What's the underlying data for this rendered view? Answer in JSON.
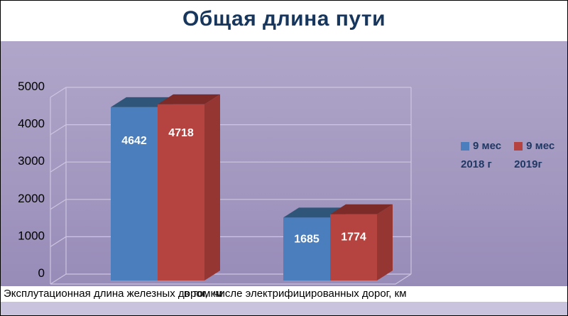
{
  "chart_data": {
    "type": "bar",
    "style": "3d-column",
    "title": "Общая длина пути",
    "categories": [
      "Эксплутационная длина железных дорог, км",
      "в том числе электрифицированных дорог, км"
    ],
    "series": [
      {
        "name": "9 мес 2018 г",
        "color": "#4a7ebc",
        "top_color": "#2f5678",
        "side_color": "#3c6ba0",
        "values": [
          4642,
          1685
        ]
      },
      {
        "name": "9 мес 2019г",
        "color": "#b5433f",
        "top_color": "#7c2b28",
        "side_color": "#963633",
        "values": [
          4718,
          1774
        ]
      }
    ],
    "ylim": [
      0,
      5000
    ],
    "yticks": [
      0,
      1000,
      2000,
      3000,
      4000,
      5000
    ],
    "grid": true,
    "legend_position": "right"
  },
  "legend": [
    {
      "line1": "9 мес",
      "line2": "2018 г"
    },
    {
      "line1": "9 мес",
      "line2": "2019г"
    }
  ],
  "colors": {
    "plot_bg": "#a79dc4",
    "gridline": "#cdc6e0",
    "title_text": "#17365d",
    "legend_text": "#1f3864",
    "axis_text": "#000000",
    "value_label_text": "#ffffff",
    "bottom_strip": "#c9c3dd"
  }
}
